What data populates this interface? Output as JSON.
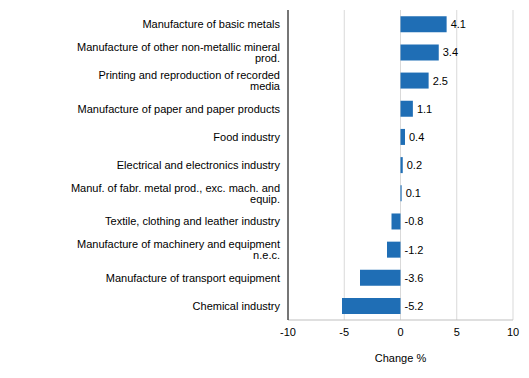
{
  "chart_data": {
    "type": "bar",
    "orientation": "horizontal",
    "categories": [
      "Manufacture of basic metals",
      "Manufacture of other non-metallic mineral prod.",
      "Printing and reproduction of recorded media",
      "Manufacture of paper and paper products",
      "Food industry",
      "Electrical and electronics industry",
      "Manuf. of fabr. metal prod., exc. mach. and equip.",
      "Textile, clothing and leather industry",
      "Manufacture of machinery and equipment n.e.c.",
      "Manufacture of transport equipment",
      "Chemical industry"
    ],
    "values": [
      4.1,
      3.4,
      2.5,
      1.1,
      0.4,
      0.2,
      0.1,
      -0.8,
      -1.2,
      -3.6,
      -5.2
    ],
    "color": "#1f6eb5",
    "xlabel": "Change %",
    "xlim": [
      -10,
      10
    ],
    "xticks": [
      -10,
      -5,
      0,
      5,
      10
    ],
    "grid": true,
    "data_labels": true
  }
}
